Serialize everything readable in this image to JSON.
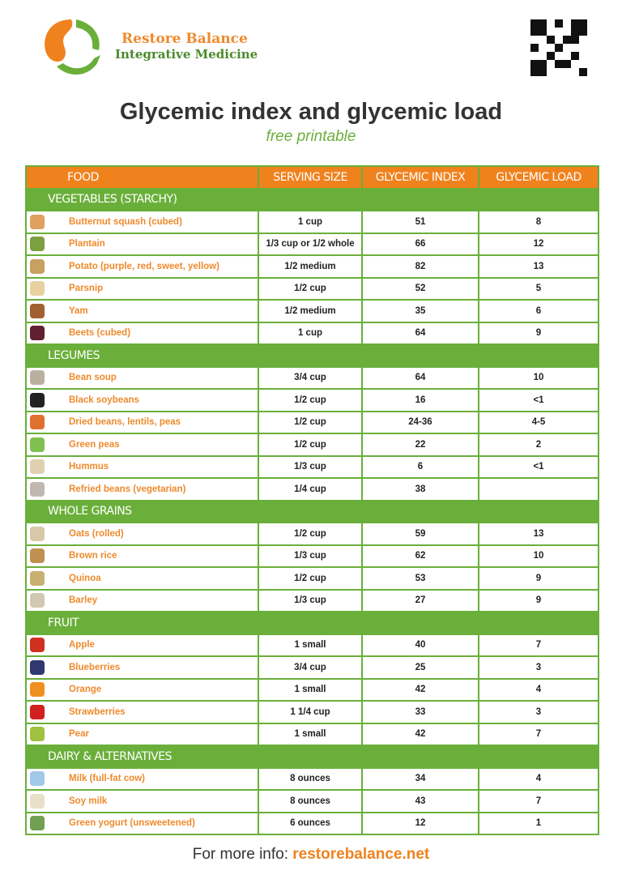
{
  "brand": {
    "line1": "Restore Balance",
    "line2": "Integrative Medicine"
  },
  "title": "Glycemic index and glycemic load",
  "subtitle": "free printable",
  "columns": [
    "FOOD",
    "SERVING SIZE",
    "GLYCEMIC INDEX",
    "GLYCEMIC LOAD"
  ],
  "colors": {
    "orange": "#f0821e",
    "green": "#6aaf3a"
  },
  "sections": [
    {
      "title": "VEGETABLES (STARCHY)",
      "items": [
        {
          "food": "Butternut squash (cubed)",
          "serving": "1 cup",
          "gi": "51",
          "gl": "8",
          "thumb": "#e0a060"
        },
        {
          "food": "Plantain",
          "serving": "1/3 cup or 1/2 whole",
          "gi": "66",
          "gl": "12",
          "thumb": "#7aa040"
        },
        {
          "food": "Potato (purple, red, sweet, yellow)",
          "serving": "1/2 medium",
          "gi": "82",
          "gl": "13",
          "thumb": "#c8a060"
        },
        {
          "food": "Parsnip",
          "serving": "1/2 cup",
          "gi": "52",
          "gl": "5",
          "thumb": "#e8d0a0"
        },
        {
          "food": "Yam",
          "serving": "1/2 medium",
          "gi": "35",
          "gl": "6",
          "thumb": "#a06030"
        },
        {
          "food": "Beets (cubed)",
          "serving": "1 cup",
          "gi": "64",
          "gl": "9",
          "thumb": "#602030"
        }
      ]
    },
    {
      "title": "LEGUMES",
      "items": [
        {
          "food": "Bean soup",
          "serving": "3/4 cup",
          "gi": "64",
          "gl": "10",
          "thumb": "#bbb0a0"
        },
        {
          "food": "Black soybeans",
          "serving": "1/2 cup",
          "gi": "16",
          "gl": "<1",
          "thumb": "#222"
        },
        {
          "food": "Dried beans, lentils, peas",
          "serving": "1/2 cup",
          "gi": "24-36",
          "gl": "4-5",
          "thumb": "#e07030"
        },
        {
          "food": "Green peas",
          "serving": "1/2 cup",
          "gi": "22",
          "gl": "2",
          "thumb": "#80c050"
        },
        {
          "food": "Hummus",
          "serving": "1/3 cup",
          "gi": "6",
          "gl": "<1",
          "thumb": "#e0d0b0"
        },
        {
          "food": "Refried beans (vegetarian)",
          "serving": "1/4 cup",
          "gi": "38",
          "gl": "",
          "thumb": "#c0b8b0"
        }
      ]
    },
    {
      "title": "WHOLE GRAINS",
      "items": [
        {
          "food": "Oats (rolled)",
          "serving": "1/2 cup",
          "gi": "59",
          "gl": "13",
          "thumb": "#d8c8a8"
        },
        {
          "food": "Brown rice",
          "serving": "1/3 cup",
          "gi": "62",
          "gl": "10",
          "thumb": "#c09050"
        },
        {
          "food": "Quinoa",
          "serving": "1/2 cup",
          "gi": "53",
          "gl": "9",
          "thumb": "#c8b070"
        },
        {
          "food": "Barley",
          "serving": "1/3 cup",
          "gi": "27",
          "gl": "9",
          "thumb": "#d0c8b0"
        }
      ]
    },
    {
      "title": "FRUIT",
      "items": [
        {
          "food": "Apple",
          "serving": "1 small",
          "gi": "40",
          "gl": "7",
          "thumb": "#d03020"
        },
        {
          "food": "Blueberries",
          "serving": "3/4 cup",
          "gi": "25",
          "gl": "3",
          "thumb": "#303870"
        },
        {
          "food": "Orange",
          "serving": "1 small",
          "gi": "42",
          "gl": "4",
          "thumb": "#f09020"
        },
        {
          "food": "Strawberries",
          "serving": "1 1/4 cup",
          "gi": "33",
          "gl": "3",
          "thumb": "#d02020"
        },
        {
          "food": "Pear",
          "serving": "1 small",
          "gi": "42",
          "gl": "7",
          "thumb": "#a0c040"
        }
      ]
    },
    {
      "title": "DAIRY & ALTERNATIVES",
      "items": [
        {
          "food": "Milk (full-fat cow)",
          "serving": "8 ounces",
          "gi": "34",
          "gl": "4",
          "thumb": "#a0c8e8"
        },
        {
          "food": "Soy milk",
          "serving": "8 ounces",
          "gi": "43",
          "gl": "7",
          "thumb": "#e8e0c8"
        },
        {
          "food": "Green yogurt (unsweetened)",
          "serving": "6 ounces",
          "gi": "12",
          "gl": "1",
          "thumb": "#70a050"
        }
      ]
    }
  ],
  "footer": {
    "prefix": "For more info: ",
    "link": "restorebalance.net"
  }
}
